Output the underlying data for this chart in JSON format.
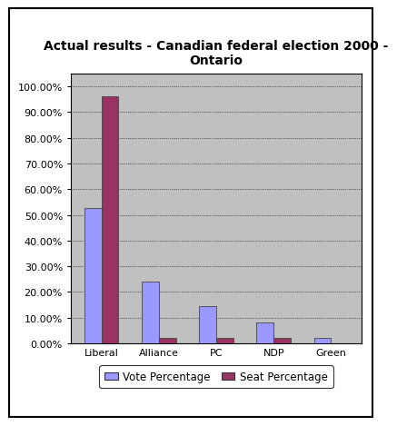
{
  "title": "Actual results - Canadian federal election 2000 -\nOntario",
  "categories": [
    "Liberal",
    "Alliance",
    "PC",
    "NDP",
    "Green"
  ],
  "vote_pct": [
    0.5251,
    0.239,
    0.1434,
    0.0821,
    0.021
  ],
  "seat_pct": [
    0.9608,
    0.0196,
    0.0196,
    0.0196,
    0.0
  ],
  "vote_color": "#9999ff",
  "seat_color": "#993366",
  "plot_bg_color": "#c0c0c0",
  "fig_bg_color": "#ffffff",
  "ylim": [
    0,
    1.05
  ],
  "yticks": [
    0.0,
    0.1,
    0.2,
    0.3,
    0.4,
    0.5,
    0.6,
    0.7,
    0.8,
    0.9,
    1.0
  ],
  "legend_vote": "Vote Percentage",
  "legend_seat": "Seat Percentage",
  "bar_width": 0.3,
  "title_fontsize": 10,
  "tick_fontsize": 8,
  "legend_fontsize": 8.5
}
